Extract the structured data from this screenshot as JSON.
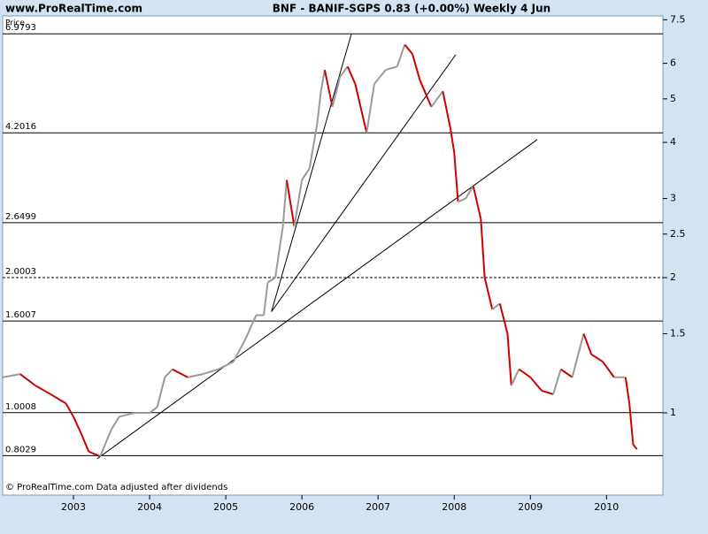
{
  "chart_data": {
    "type": "line",
    "site": "www.ProRealTime.com",
    "title": "BNF - BANIF-SGPS    0.83 (+0.00%)    Weekly  4 Jun",
    "y_label": "Price",
    "footer": "© ProRealTime.com Data adjusted after dividends",
    "log_scale": true,
    "up_color": "#999999",
    "down_color": "#cc0000",
    "x": [
      2002.07,
      2002.3,
      2002.5,
      2002.7,
      2002.9,
      2003.0,
      2003.1,
      2003.2,
      2003.35,
      2003.5,
      2003.6,
      2003.8,
      2004.0,
      2004.1,
      2004.2,
      2004.3,
      2004.5,
      2004.7,
      2004.9,
      2005.1,
      2005.25,
      2005.4,
      2005.5,
      2005.55,
      2005.65,
      2005.75,
      2005.8,
      2005.9,
      2006.0,
      2006.1,
      2006.2,
      2006.25,
      2006.3,
      2006.4,
      2006.5,
      2006.6,
      2006.7,
      2006.85,
      2006.95,
      2007.1,
      2007.25,
      2007.35,
      2007.45,
      2007.55,
      2007.7,
      2007.85,
      2007.95,
      2008.0,
      2008.05,
      2008.15,
      2008.25,
      2008.35,
      2008.4,
      2008.5,
      2008.6,
      2008.7,
      2008.75,
      2008.85,
      2009.0,
      2009.15,
      2009.3,
      2009.4,
      2009.55,
      2009.7,
      2009.8,
      2009.95,
      2010.1,
      2010.25,
      2010.3,
      2010.35,
      2010.4
    ],
    "values": [
      1.2,
      1.22,
      1.15,
      1.1,
      1.05,
      0.98,
      0.9,
      0.82,
      0.8,
      0.92,
      0.98,
      1.0,
      1.0,
      1.03,
      1.2,
      1.25,
      1.2,
      1.22,
      1.25,
      1.3,
      1.45,
      1.65,
      1.65,
      1.95,
      2.0,
      2.6,
      3.3,
      2.6,
      3.3,
      3.5,
      4.4,
      5.2,
      5.8,
      4.8,
      5.6,
      5.9,
      5.4,
      4.2,
      5.4,
      5.8,
      5.9,
      6.6,
      6.3,
      5.5,
      4.8,
      5.2,
      4.3,
      3.8,
      2.95,
      3.0,
      3.2,
      2.7,
      2.0,
      1.7,
      1.75,
      1.5,
      1.15,
      1.25,
      1.2,
      1.12,
      1.1,
      1.25,
      1.2,
      1.5,
      1.35,
      1.3,
      1.2,
      1.2,
      1.05,
      0.85,
      0.83
    ],
    "xlim": [
      2002.07,
      2010.74
    ],
    "xticks": [
      2003,
      2004,
      2005,
      2006,
      2007,
      2008,
      2009,
      2010
    ],
    "ylim": [
      0.656,
      7.65
    ],
    "yticks": [
      1,
      1.5,
      2,
      2.5,
      3,
      4,
      5,
      6,
      7.5
    ],
    "levels": [
      6.9793,
      4.2016,
      2.6499,
      2.0003,
      1.6007,
      1.0008,
      0.8029
    ],
    "level_styles": [
      "solid",
      "solid",
      "solid",
      "dashed",
      "solid",
      "solid",
      "solid"
    ],
    "trendlines": [
      [
        2003.31,
        0.79,
        2009.09,
        4.06
      ],
      [
        2005.6,
        1.68,
        2008.02,
        6.27
      ],
      [
        2005.6,
        1.68,
        2006.65,
        6.98
      ]
    ]
  }
}
